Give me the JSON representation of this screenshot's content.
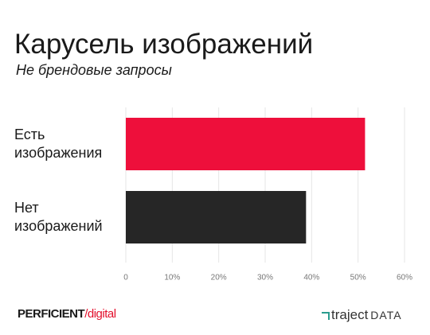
{
  "chart_data": {
    "type": "bar",
    "orientation": "horizontal",
    "title": "Карусель изображений",
    "subtitle": "Не брендовые запросы",
    "categories": [
      "Есть изображения",
      "Нет изображений"
    ],
    "series": [
      {
        "colors": [
          "#ee0f3b",
          "#262626"
        ],
        "values": [
          51.5,
          38.8
        ]
      }
    ],
    "xlim": [
      0,
      60
    ],
    "xticks": [
      0,
      {
        "value": 10,
        "label": "10%"
      },
      {
        "value": 20,
        "label": "20%"
      },
      {
        "value": 30,
        "label": "30%"
      },
      {
        "value": 40,
        "label": "40%"
      },
      {
        "value": 50,
        "label": "50%"
      },
      {
        "value": 60,
        "label": "60%"
      }
    ],
    "grid": true
  },
  "footer": {
    "left_logo": [
      "PERFICIENT",
      "/",
      "digital"
    ],
    "right_logo": [
      "traject",
      "DATA"
    ]
  }
}
